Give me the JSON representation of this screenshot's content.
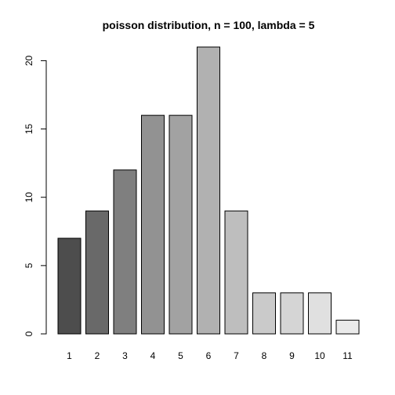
{
  "chart_data": {
    "type": "bar",
    "title": "poisson distribution, n = 100, lambda = 5",
    "xlabel": "",
    "ylabel": "",
    "categories": [
      "1",
      "2",
      "3",
      "4",
      "5",
      "6",
      "7",
      "8",
      "9",
      "10",
      "11"
    ],
    "values": [
      7,
      9,
      12,
      16,
      16,
      21,
      9,
      3,
      3,
      3,
      1
    ],
    "colors": [
      "#4d4d4d",
      "#696969",
      "#7f7f7f",
      "#929292",
      "#a2a2a2",
      "#b1b1b1",
      "#bebebe",
      "#cacaca",
      "#d5d5d5",
      "#e0e0e0",
      "#eaeaea"
    ],
    "ylim": [
      0,
      21
    ],
    "yticks": [
      0,
      5,
      10,
      15,
      20
    ],
    "grid": false,
    "legend": "none"
  }
}
